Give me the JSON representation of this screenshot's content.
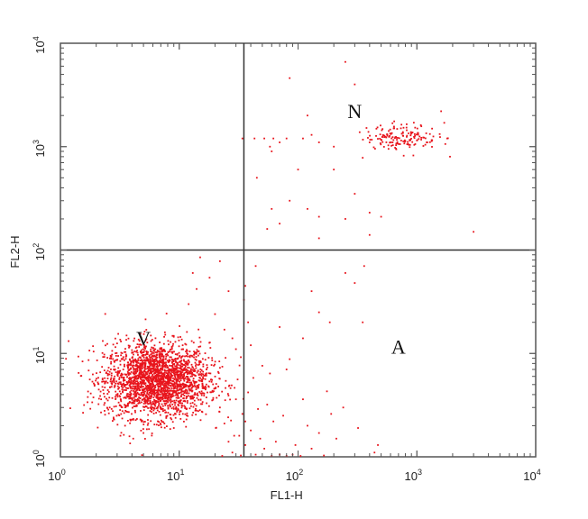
{
  "chart_data": {
    "type": "scatter",
    "title": "",
    "xlabel": "FL1-H",
    "ylabel": "FL2-H",
    "x_scale": "log",
    "y_scale": "log",
    "xlim": [
      1,
      10000
    ],
    "ylim": [
      1,
      10000
    ],
    "x_ticks": [
      {
        "base": "10",
        "exp": "0"
      },
      {
        "base": "10",
        "exp": "1"
      },
      {
        "base": "10",
        "exp": "2"
      },
      {
        "base": "10",
        "exp": "3"
      },
      {
        "base": "10",
        "exp": "4"
      }
    ],
    "y_ticks": [
      {
        "base": "10",
        "exp": "0"
      },
      {
        "base": "10",
        "exp": "1"
      },
      {
        "base": "10",
        "exp": "2"
      },
      {
        "base": "10",
        "exp": "3"
      },
      {
        "base": "10",
        "exp": "4"
      }
    ],
    "quadrant_gate": {
      "x": 35,
      "y": 100
    },
    "quadrant_labels": [
      {
        "text": "N",
        "x": 300,
        "y": 1900
      },
      {
        "text": "V",
        "x": 5,
        "y": 12
      },
      {
        "text": "A",
        "x": 700,
        "y": 10
      }
    ],
    "point_color": "#e8141c",
    "series": [
      {
        "name": "",
        "clusters": [
          {
            "center_x": 6.5,
            "center_y": 5.5,
            "spread_log_x": 0.22,
            "spread_log_y": 0.18,
            "count": 2400
          },
          {
            "center_x": 750,
            "center_y": 1250,
            "spread_log_x": 0.15,
            "spread_log_y": 0.06,
            "count": 160
          }
        ],
        "points": [
          [
            1.8,
            4.1
          ],
          [
            2.2,
            3.6
          ],
          [
            2.5,
            5.2
          ],
          [
            2.6,
            3.0
          ],
          [
            2.8,
            2.4
          ],
          [
            3.2,
            1.6
          ],
          [
            3.5,
            2.0
          ],
          [
            4.1,
            1.5
          ],
          [
            5.0,
            1.7
          ],
          [
            7.5,
            2.1
          ],
          [
            9.0,
            1.9
          ],
          [
            11.5,
            2.3
          ],
          [
            14,
            2.8
          ],
          [
            17,
            3.3
          ],
          [
            20,
            4.6
          ],
          [
            22,
            3.0
          ],
          [
            24,
            2.1
          ],
          [
            26,
            1.4
          ],
          [
            28,
            1.1
          ],
          [
            30,
            3.6
          ],
          [
            32,
            1.6
          ],
          [
            34,
            2.6
          ],
          [
            36,
            1.3
          ],
          [
            38,
            4.2
          ],
          [
            40,
            1.8
          ],
          [
            42,
            5.8
          ],
          [
            44,
            1.05
          ],
          [
            46,
            2.9
          ],
          [
            48,
            1.5
          ],
          [
            50,
            7.6
          ],
          [
            52,
            1.2
          ],
          [
            55,
            3.2
          ],
          [
            58,
            6.4
          ],
          [
            60,
            1.02
          ],
          [
            62,
            2.2
          ],
          [
            65,
            1.4
          ],
          [
            70,
            1.05
          ],
          [
            75,
            2.5
          ],
          [
            80,
            1.02
          ],
          [
            85,
            8.8
          ],
          [
            90,
            1.05
          ],
          [
            95,
            1.3
          ],
          [
            105,
            1.02
          ],
          [
            110,
            3.6
          ],
          [
            120,
            2.0
          ],
          [
            130,
            1.2
          ],
          [
            150,
            1.7
          ],
          [
            165,
            1.03
          ],
          [
            175,
            4.3
          ],
          [
            190,
            2.6
          ],
          [
            210,
            1.5
          ],
          [
            240,
            3.0
          ],
          [
            320,
            1.9
          ],
          [
            440,
            1.1
          ],
          [
            470,
            1.3
          ],
          [
            23,
            1.02
          ],
          [
            29,
            1.6
          ],
          [
            33,
            1.03
          ],
          [
            36,
            2.2
          ],
          [
            31,
            5.6
          ],
          [
            33,
            9.2
          ],
          [
            35,
            33
          ],
          [
            36,
            45
          ],
          [
            38,
            20
          ],
          [
            40,
            12
          ],
          [
            44,
            70
          ],
          [
            70,
            18
          ],
          [
            80,
            7.0
          ],
          [
            110,
            14
          ],
          [
            130,
            40
          ],
          [
            150,
            25
          ],
          [
            185,
            20
          ],
          [
            250,
            60
          ],
          [
            300,
            48
          ],
          [
            350,
            20
          ],
          [
            360,
            70
          ],
          [
            12,
            30
          ],
          [
            13,
            60
          ],
          [
            14,
            42
          ],
          [
            15,
            85
          ],
          [
            18,
            54
          ],
          [
            20,
            24
          ],
          [
            22,
            78
          ],
          [
            24,
            17
          ],
          [
            26,
            40
          ],
          [
            28,
            14
          ],
          [
            30,
            11
          ],
          [
            34,
            1200
          ],
          [
            43,
            1200
          ],
          [
            52,
            1200
          ],
          [
            58,
            1000
          ],
          [
            62,
            1200
          ],
          [
            70,
            1100
          ],
          [
            80,
            1200
          ],
          [
            85,
            4600
          ],
          [
            100,
            600
          ],
          [
            110,
            1200
          ],
          [
            120,
            2000
          ],
          [
            130,
            1300
          ],
          [
            150,
            1100
          ],
          [
            200,
            1000
          ],
          [
            250,
            6600
          ],
          [
            300,
            4000
          ],
          [
            400,
            1100
          ],
          [
            45,
            500
          ],
          [
            60,
            250
          ],
          [
            70,
            180
          ],
          [
            85,
            300
          ],
          [
            120,
            250
          ],
          [
            150,
            210
          ],
          [
            250,
            200
          ],
          [
            300,
            350
          ],
          [
            400,
            140
          ],
          [
            500,
            210
          ],
          [
            400,
            230
          ],
          [
            1600,
            2200
          ],
          [
            1700,
            1700
          ],
          [
            1800,
            1200
          ],
          [
            1900,
            800
          ],
          [
            3000,
            150
          ],
          [
            60,
            900
          ],
          [
            200,
            600
          ],
          [
            350,
            780
          ],
          [
            150,
            130
          ],
          [
            55,
            160
          ]
        ]
      }
    ],
    "grid": false,
    "legend": "none"
  }
}
